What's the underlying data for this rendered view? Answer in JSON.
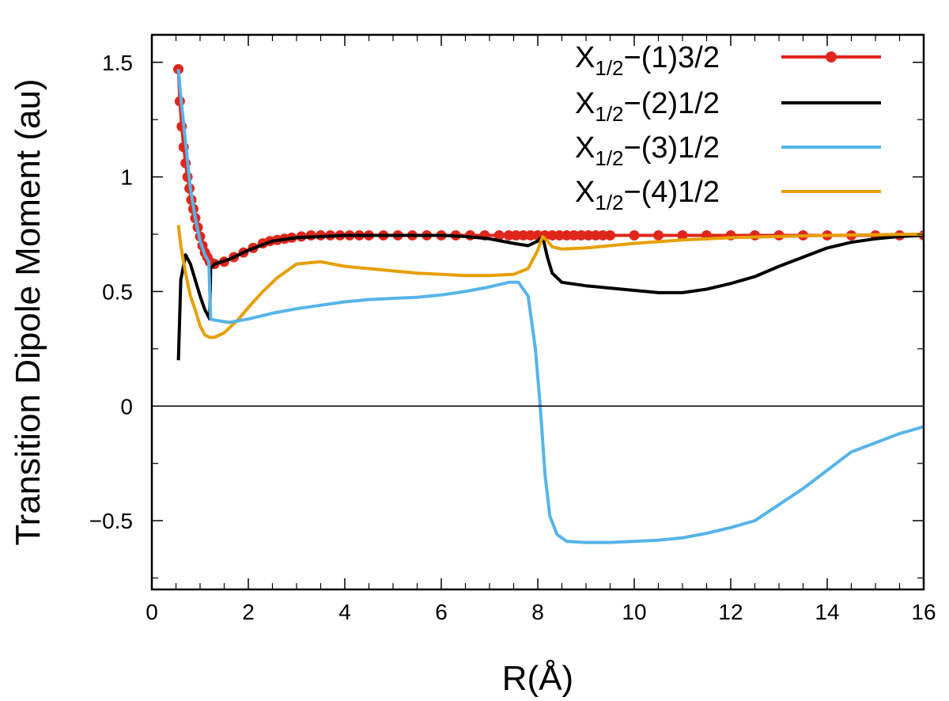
{
  "chart_data": {
    "type": "line",
    "title": "",
    "xlabel": "R(Å)",
    "ylabel": "Transition Dipole Moment (au)",
    "xlim": [
      0,
      16
    ],
    "ylim": [
      -0.8,
      1.62
    ],
    "xticks": [
      0,
      2,
      4,
      6,
      8,
      10,
      12,
      14,
      16
    ],
    "xtick_labels": [
      "0",
      "2",
      "4",
      "6",
      "8",
      "10",
      "12",
      "14",
      "16"
    ],
    "yticks": [
      -0.5,
      0,
      0.5,
      1,
      1.5
    ],
    "ytick_labels": [
      "−0.5",
      "0",
      "0.5",
      "1",
      "1.5"
    ],
    "zero_line": true,
    "grid": false,
    "legend_position": "top-right",
    "series": [
      {
        "name": "X",
        "name_sub": "1/2",
        "name_rest": "−(1)3/2",
        "color": "#e0261b",
        "markers": true,
        "points": [
          [
            0.55,
            1.47
          ],
          [
            0.58,
            1.33
          ],
          [
            0.62,
            1.22
          ],
          [
            0.66,
            1.13
          ],
          [
            0.7,
            1.06
          ],
          [
            0.74,
            1.0
          ],
          [
            0.78,
            0.95
          ],
          [
            0.82,
            0.9
          ],
          [
            0.86,
            0.86
          ],
          [
            0.9,
            0.82
          ],
          [
            0.95,
            0.78
          ],
          [
            1.0,
            0.74
          ],
          [
            1.05,
            0.7
          ],
          [
            1.1,
            0.67
          ],
          [
            1.15,
            0.65
          ],
          [
            1.2,
            0.63
          ],
          [
            1.3,
            0.62
          ],
          [
            1.5,
            0.63
          ],
          [
            1.7,
            0.65
          ],
          [
            1.9,
            0.67
          ],
          [
            2.1,
            0.69
          ],
          [
            2.3,
            0.71
          ],
          [
            2.45,
            0.72
          ],
          [
            2.6,
            0.725
          ],
          [
            2.75,
            0.73
          ],
          [
            2.9,
            0.735
          ],
          [
            3.1,
            0.74
          ],
          [
            3.3,
            0.745
          ],
          [
            3.5,
            0.745
          ],
          [
            3.7,
            0.745
          ],
          [
            3.9,
            0.745
          ],
          [
            4.1,
            0.745
          ],
          [
            4.3,
            0.745
          ],
          [
            4.5,
            0.745
          ],
          [
            4.8,
            0.745
          ],
          [
            5.1,
            0.745
          ],
          [
            5.4,
            0.745
          ],
          [
            5.7,
            0.745
          ],
          [
            6.0,
            0.745
          ],
          [
            6.3,
            0.745
          ],
          [
            6.6,
            0.745
          ],
          [
            6.9,
            0.745
          ],
          [
            7.2,
            0.745
          ],
          [
            7.4,
            0.745
          ],
          [
            7.55,
            0.745
          ],
          [
            7.7,
            0.745
          ],
          [
            7.85,
            0.745
          ],
          [
            8.0,
            0.745
          ],
          [
            8.15,
            0.745
          ],
          [
            8.3,
            0.745
          ],
          [
            8.45,
            0.745
          ],
          [
            8.6,
            0.745
          ],
          [
            8.75,
            0.745
          ],
          [
            8.9,
            0.745
          ],
          [
            9.05,
            0.745
          ],
          [
            9.2,
            0.745
          ],
          [
            9.35,
            0.745
          ],
          [
            9.5,
            0.745
          ],
          [
            10.0,
            0.745
          ],
          [
            10.5,
            0.745
          ],
          [
            11.0,
            0.745
          ],
          [
            11.5,
            0.745
          ],
          [
            12.0,
            0.745
          ],
          [
            12.5,
            0.745
          ],
          [
            13.0,
            0.745
          ],
          [
            13.5,
            0.745
          ],
          [
            14.0,
            0.745
          ],
          [
            14.5,
            0.745
          ],
          [
            15.0,
            0.745
          ],
          [
            15.5,
            0.745
          ],
          [
            16.0,
            0.745
          ]
        ]
      },
      {
        "name": "X",
        "name_sub": "1/2",
        "name_rest": "−(2)1/2",
        "color": "#000000",
        "markers": false,
        "points": [
          [
            0.55,
            0.2
          ],
          [
            0.6,
            0.55
          ],
          [
            0.7,
            0.66
          ],
          [
            0.8,
            0.62
          ],
          [
            0.9,
            0.55
          ],
          [
            1.0,
            0.48
          ],
          [
            1.1,
            0.42
          ],
          [
            1.2,
            0.38
          ],
          [
            1.22,
            0.6
          ],
          [
            1.3,
            0.62
          ],
          [
            1.6,
            0.64
          ],
          [
            2.0,
            0.68
          ],
          [
            2.5,
            0.72
          ],
          [
            3.0,
            0.735
          ],
          [
            4.0,
            0.745
          ],
          [
            5.0,
            0.745
          ],
          [
            6.0,
            0.745
          ],
          [
            6.5,
            0.74
          ],
          [
            7.0,
            0.73
          ],
          [
            7.5,
            0.71
          ],
          [
            7.8,
            0.7
          ],
          [
            8.0,
            0.72
          ],
          [
            8.1,
            0.74
          ],
          [
            8.2,
            0.65
          ],
          [
            8.3,
            0.58
          ],
          [
            8.5,
            0.54
          ],
          [
            9.0,
            0.525
          ],
          [
            9.5,
            0.515
          ],
          [
            10.0,
            0.505
          ],
          [
            10.5,
            0.495
          ],
          [
            11.0,
            0.495
          ],
          [
            11.5,
            0.51
          ],
          [
            12.0,
            0.535
          ],
          [
            12.5,
            0.565
          ],
          [
            13.0,
            0.61
          ],
          [
            13.5,
            0.65
          ],
          [
            14.0,
            0.69
          ],
          [
            14.5,
            0.715
          ],
          [
            15.0,
            0.73
          ],
          [
            15.5,
            0.74
          ],
          [
            16.0,
            0.745
          ]
        ]
      },
      {
        "name": "X",
        "name_sub": "1/2",
        "name_rest": "−(3)1/2",
        "color": "#56b4e9",
        "markers": false,
        "points": [
          [
            0.55,
            1.47
          ],
          [
            0.6,
            1.35
          ],
          [
            0.7,
            1.15
          ],
          [
            0.8,
            0.95
          ],
          [
            0.9,
            0.82
          ],
          [
            1.0,
            0.72
          ],
          [
            1.1,
            0.66
          ],
          [
            1.18,
            0.63
          ],
          [
            1.22,
            0.38
          ],
          [
            1.3,
            0.375
          ],
          [
            1.6,
            0.365
          ],
          [
            2.0,
            0.38
          ],
          [
            2.5,
            0.405
          ],
          [
            3.0,
            0.425
          ],
          [
            3.5,
            0.44
          ],
          [
            4.0,
            0.455
          ],
          [
            4.5,
            0.465
          ],
          [
            5.0,
            0.47
          ],
          [
            5.5,
            0.475
          ],
          [
            6.0,
            0.485
          ],
          [
            6.5,
            0.5
          ],
          [
            7.0,
            0.52
          ],
          [
            7.4,
            0.54
          ],
          [
            7.6,
            0.54
          ],
          [
            7.8,
            0.48
          ],
          [
            7.95,
            0.25
          ],
          [
            8.05,
            0.0
          ],
          [
            8.15,
            -0.3
          ],
          [
            8.25,
            -0.48
          ],
          [
            8.4,
            -0.56
          ],
          [
            8.6,
            -0.59
          ],
          [
            9.0,
            -0.595
          ],
          [
            9.5,
            -0.595
          ],
          [
            10.0,
            -0.59
          ],
          [
            10.5,
            -0.585
          ],
          [
            11.0,
            -0.575
          ],
          [
            11.5,
            -0.555
          ],
          [
            12.0,
            -0.53
          ],
          [
            12.5,
            -0.5
          ],
          [
            13.0,
            -0.43
          ],
          [
            13.5,
            -0.36
          ],
          [
            14.0,
            -0.28
          ],
          [
            14.5,
            -0.2
          ],
          [
            15.0,
            -0.16
          ],
          [
            15.5,
            -0.12
          ],
          [
            16.0,
            -0.09
          ]
        ]
      },
      {
        "name": "X",
        "name_sub": "1/2",
        "name_rest": "−(4)1/2",
        "color": "#e69f00",
        "markers": false,
        "points": [
          [
            0.55,
            0.79
          ],
          [
            0.6,
            0.7
          ],
          [
            0.7,
            0.58
          ],
          [
            0.8,
            0.48
          ],
          [
            0.9,
            0.42
          ],
          [
            1.0,
            0.35
          ],
          [
            1.1,
            0.31
          ],
          [
            1.2,
            0.3
          ],
          [
            1.3,
            0.3
          ],
          [
            1.5,
            0.32
          ],
          [
            1.8,
            0.38
          ],
          [
            2.0,
            0.43
          ],
          [
            2.3,
            0.5
          ],
          [
            2.6,
            0.56
          ],
          [
            3.0,
            0.62
          ],
          [
            3.5,
            0.63
          ],
          [
            4.0,
            0.61
          ],
          [
            4.5,
            0.6
          ],
          [
            5.0,
            0.59
          ],
          [
            5.5,
            0.58
          ],
          [
            6.0,
            0.575
          ],
          [
            6.5,
            0.57
          ],
          [
            7.0,
            0.57
          ],
          [
            7.5,
            0.575
          ],
          [
            7.8,
            0.6
          ],
          [
            8.0,
            0.68
          ],
          [
            8.1,
            0.74
          ],
          [
            8.2,
            0.72
          ],
          [
            8.3,
            0.695
          ],
          [
            8.5,
            0.685
          ],
          [
            9.0,
            0.69
          ],
          [
            9.5,
            0.7
          ],
          [
            10.0,
            0.71
          ],
          [
            11.0,
            0.725
          ],
          [
            12.0,
            0.735
          ],
          [
            13.0,
            0.74
          ],
          [
            14.0,
            0.745
          ],
          [
            16.0,
            0.75
          ]
        ]
      }
    ]
  }
}
